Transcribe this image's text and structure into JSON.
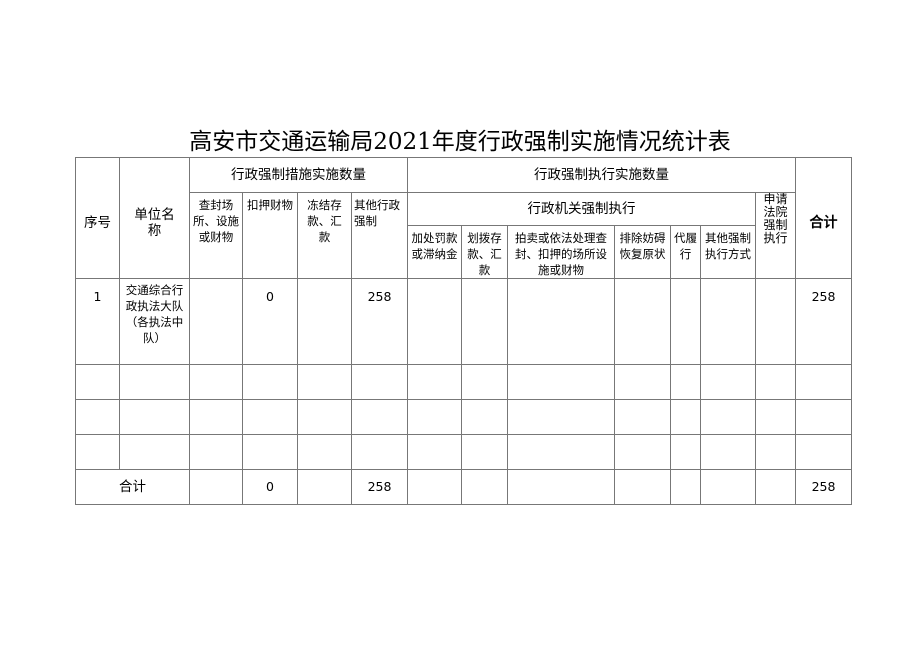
{
  "title": "高安市交通运输局2021年度行政强制实施情况统计表",
  "headers": {
    "seq": "序号",
    "unit": "单位名称",
    "measures": "行政强制措施实施数量",
    "enforcement": "行政强制执行实施数量",
    "total": "合计",
    "admin_enforcement": "行政机关强制执行",
    "court_enforcement": "申请法院强制执行",
    "measure_cols": [
      "查封场所、设施或财物",
      "扣押财物",
      "冻结存款、汇款",
      "其他行政强制"
    ],
    "admin_cols": [
      "加处罚款或滞纳金",
      "划拨存款、汇款",
      "拍卖或依法处理查封、扣押的场所设施或财物",
      "排除妨碍恢复原状",
      "代履行",
      "其他强制执行方式"
    ]
  },
  "rows": [
    {
      "seq": "1",
      "unit": "交通综合行政执法大队（各执法中队）",
      "cells": [
        "",
        "0",
        "",
        "258",
        "",
        "",
        "",
        "",
        "",
        "",
        "",
        ""
      ],
      "total": "258"
    }
  ],
  "empty_rows": 3,
  "footer": {
    "label": "合计",
    "cells": [
      "",
      "0",
      "",
      "258",
      "",
      "",
      "",
      "",
      "",
      "",
      "",
      ""
    ],
    "total": "258"
  }
}
